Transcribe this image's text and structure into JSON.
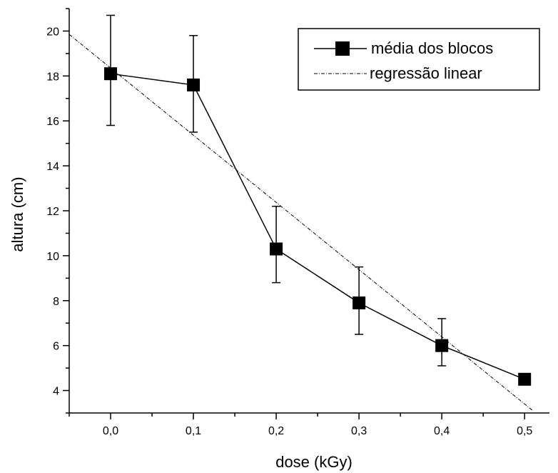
{
  "chart_data": {
    "type": "line",
    "title": "",
    "xlabel": "dose (kGy)",
    "ylabel": "altura (cm)",
    "xlim": [
      -0.05,
      0.53
    ],
    "ylim": [
      3.0,
      21.0
    ],
    "x_ticks": [
      0.0,
      0.1,
      0.2,
      0.3,
      0.4,
      0.5
    ],
    "x_tick_labels": [
      "0,0",
      "0,1",
      "0,2",
      "0,3",
      "0,4",
      "0,5"
    ],
    "y_ticks": [
      4,
      6,
      8,
      10,
      12,
      14,
      16,
      18,
      20
    ],
    "y_tick_labels": [
      "4",
      "6",
      "8",
      "10",
      "12",
      "14",
      "16",
      "18",
      "20"
    ],
    "grid": false,
    "legend_position": "top-right",
    "series": [
      {
        "name": "média dos blocos",
        "style": "solid-line-square-markers",
        "color": "#000000",
        "x": [
          0.0,
          0.1,
          0.2,
          0.3,
          0.4,
          0.5
        ],
        "y": [
          18.1,
          17.6,
          10.3,
          7.9,
          6.0,
          4.5
        ],
        "error_low": [
          15.8,
          15.5,
          8.8,
          6.5,
          5.1,
          null
        ],
        "error_high": [
          20.7,
          19.8,
          12.2,
          9.5,
          7.2,
          null
        ]
      },
      {
        "name": "regressão linear",
        "style": "dash-dot-line",
        "color": "#000000",
        "x": [
          -0.05,
          0.51
        ],
        "y": [
          19.85,
          3.1
        ]
      }
    ]
  }
}
